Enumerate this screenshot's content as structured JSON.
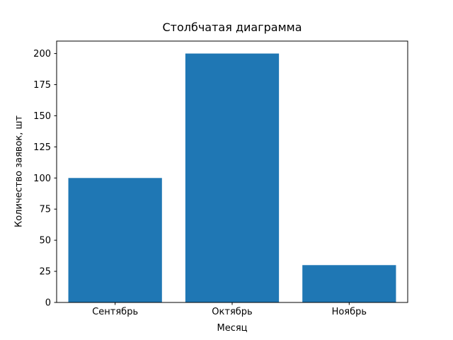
{
  "chart_data": {
    "type": "bar",
    "title": "Столбчатая диаграмма",
    "xlabel": "Месяц",
    "ylabel": "Количество заявок, шт",
    "categories": [
      "Сентябрь",
      "Октябрь",
      "Ноябрь"
    ],
    "values": [
      100,
      200,
      30
    ],
    "ylim": [
      0,
      210
    ],
    "yticks": [
      0,
      25,
      50,
      75,
      100,
      125,
      150,
      175,
      200
    ],
    "bar_color": "#1f77b4",
    "axis_color": "#000000",
    "background_color": "#ffffff",
    "grid": false,
    "legend": null,
    "bar_width_fraction": 0.8
  }
}
